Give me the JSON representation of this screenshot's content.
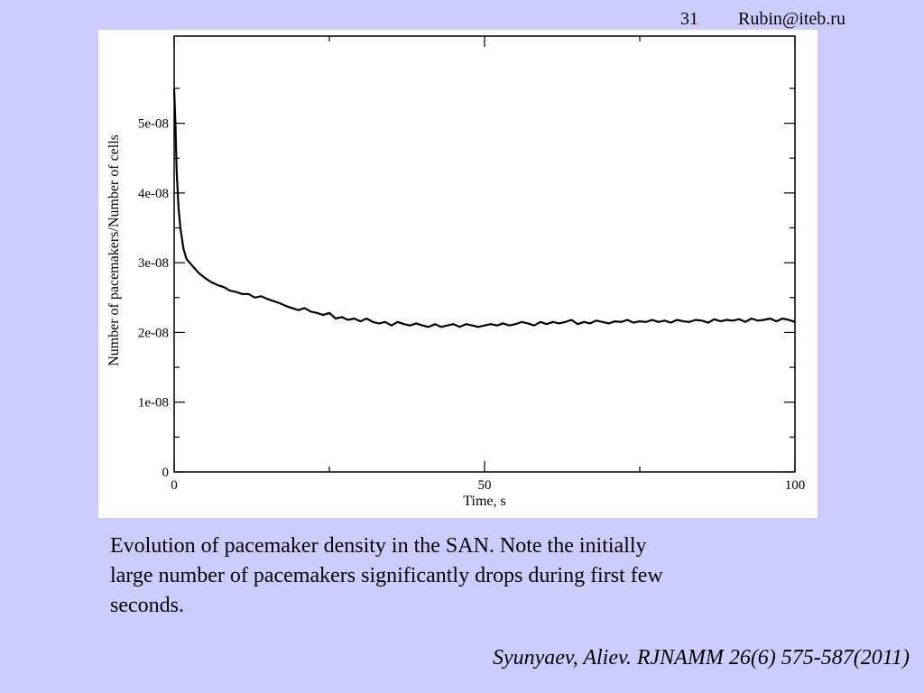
{
  "header": {
    "slide_number": "31",
    "email": "Rubin@iteb.ru"
  },
  "caption": " Evolution of pacemaker density in the SAN. Note the initially\nlarge number of pacemakers significantly drops during first few\nseconds.",
  "citation": "Syunyaev, Aliev. RJNAMM  26(6) 575-587(2011)",
  "colors": {
    "background": "#ccccff",
    "plot_background": "#ffffff",
    "line": "#000000"
  },
  "chart_data": {
    "type": "line",
    "xlabel": "Time, s",
    "ylabel": "Number of pacemakers/Number of cells",
    "xlim": [
      0,
      100
    ],
    "ylim": [
      0,
      6.25e-08
    ],
    "x_ticks": [
      0,
      50,
      100
    ],
    "x_tick_labels": [
      "0",
      "50",
      "100"
    ],
    "x_minor_ticks": [
      25,
      75
    ],
    "y_ticks": [
      0,
      1e-08,
      2e-08,
      3e-08,
      4e-08,
      5e-08
    ],
    "y_tick_labels": [
      "0",
      "1e-08",
      "2e-08",
      "3e-08",
      "4e-08",
      "5e-08"
    ],
    "y_minor_ticks": [
      5e-09,
      1.5e-08,
      2.5e-08,
      3.5e-08,
      4.5e-08,
      5.5e-08
    ],
    "grid": false,
    "series": [
      {
        "x": [
          0,
          0.2,
          0.4,
          0.7,
          1,
          1.5,
          2,
          3,
          4,
          5,
          6,
          7,
          8,
          9,
          10,
          11,
          12,
          13,
          14,
          15,
          16,
          17,
          18,
          19,
          20,
          21,
          22,
          23,
          24,
          25,
          26,
          27,
          28,
          29,
          30,
          31,
          32,
          33,
          34,
          35,
          36,
          37,
          38,
          39,
          40,
          41,
          42,
          43,
          44,
          45,
          46,
          47,
          48,
          49,
          50,
          51,
          52,
          53,
          54,
          55,
          56,
          57,
          58,
          59,
          60,
          61,
          62,
          63,
          64,
          65,
          66,
          67,
          68,
          69,
          70,
          71,
          72,
          73,
          74,
          75,
          76,
          77,
          78,
          79,
          80,
          81,
          82,
          83,
          84,
          85,
          86,
          87,
          88,
          89,
          90,
          91,
          92,
          93,
          94,
          95,
          96,
          97,
          98,
          99,
          100
        ],
        "y": [
          5.5e-08,
          5e-08,
          4.3e-08,
          3.8e-08,
          3.5e-08,
          3.2e-08,
          3.05e-08,
          2.95e-08,
          2.85e-08,
          2.78e-08,
          2.72e-08,
          2.68e-08,
          2.65e-08,
          2.6e-08,
          2.58e-08,
          2.55e-08,
          2.55e-08,
          2.5e-08,
          2.52e-08,
          2.48e-08,
          2.45e-08,
          2.42e-08,
          2.38e-08,
          2.35e-08,
          2.32e-08,
          2.35e-08,
          2.3e-08,
          2.28e-08,
          2.25e-08,
          2.28e-08,
          2.2e-08,
          2.22e-08,
          2.18e-08,
          2.2e-08,
          2.16e-08,
          2.2e-08,
          2.15e-08,
          2.13e-08,
          2.15e-08,
          2.1e-08,
          2.15e-08,
          2.12e-08,
          2.1e-08,
          2.13e-08,
          2.1e-08,
          2.08e-08,
          2.12e-08,
          2.08e-08,
          2.1e-08,
          2.12e-08,
          2.08e-08,
          2.12e-08,
          2.1e-08,
          2.08e-08,
          2.1e-08,
          2.12e-08,
          2.1e-08,
          2.13e-08,
          2.1e-08,
          2.12e-08,
          2.15e-08,
          2.13e-08,
          2.1e-08,
          2.15e-08,
          2.12e-08,
          2.15e-08,
          2.13e-08,
          2.15e-08,
          2.18e-08,
          2.12e-08,
          2.15e-08,
          2.13e-08,
          2.17e-08,
          2.15e-08,
          2.13e-08,
          2.16e-08,
          2.15e-08,
          2.18e-08,
          2.14e-08,
          2.16e-08,
          2.15e-08,
          2.18e-08,
          2.15e-08,
          2.17e-08,
          2.14e-08,
          2.18e-08,
          2.16e-08,
          2.15e-08,
          2.18e-08,
          2.17e-08,
          2.14e-08,
          2.19e-08,
          2.16e-08,
          2.18e-08,
          2.17e-08,
          2.19e-08,
          2.15e-08,
          2.2e-08,
          2.17e-08,
          2.18e-08,
          2.2e-08,
          2.16e-08,
          2.2e-08,
          2.18e-08,
          2.15e-08
        ]
      }
    ]
  }
}
